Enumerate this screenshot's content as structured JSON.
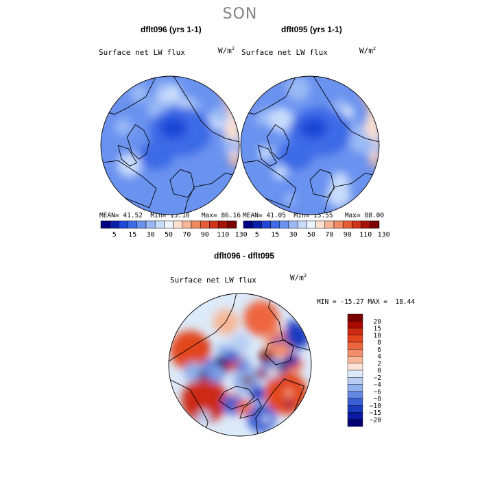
{
  "season": "SON",
  "diff_title": "dflt096 - dflt095",
  "chart_data": [
    {
      "type": "heatmap",
      "projection": "north polar stereographic",
      "title": "dflt096 (yrs 1-1)",
      "variable": "Surface net LW flux",
      "units": "W/m",
      "units_exp": "2",
      "stats": {
        "mean_label": "MEAN=",
        "mean": "41.52",
        "min_label": "Min=",
        "min": "15.10",
        "max_label": "Max=",
        "max": "86.16"
      },
      "levels": [
        5,
        15,
        30,
        50,
        70,
        90,
        110,
        130
      ],
      "colors": [
        "#000080",
        "#0a1fa8",
        "#1f47d6",
        "#3e6ae6",
        "#6a92ef",
        "#9ab9f5",
        "#c9dcfb",
        "#eef4fd",
        "#fde0cf",
        "#f8b597",
        "#f08a63",
        "#e65c37",
        "#cf3318",
        "#a51205",
        "#7a0000"
      ]
    },
    {
      "type": "heatmap",
      "projection": "north polar stereographic",
      "title": "dflt095 (yrs 1-1)",
      "variable": "Surface net LW flux",
      "units": "W/m",
      "units_exp": "2",
      "stats": {
        "mean_label": "MEAN=",
        "mean": "41.05",
        "min_label": "Min=",
        "min": "15.55",
        "max_label": "Max=",
        "max": "88.00"
      },
      "levels": [
        5,
        15,
        30,
        50,
        70,
        90,
        110,
        130
      ],
      "colors": [
        "#000080",
        "#0a1fa8",
        "#1f47d6",
        "#3e6ae6",
        "#6a92ef",
        "#9ab9f5",
        "#c9dcfb",
        "#eef4fd",
        "#fde0cf",
        "#f8b597",
        "#f08a63",
        "#e65c37",
        "#cf3318",
        "#a51205",
        "#7a0000"
      ]
    },
    {
      "type": "heatmap",
      "projection": "north polar stereographic",
      "title": "dflt096 - dflt095",
      "variable": "Surface net LW flux",
      "units": "W/m",
      "units_exp": "2",
      "stats": {
        "min_label": "MIN =",
        "min": "-15.27",
        "max_label": "MAX =",
        "max": "18.44"
      },
      "levels": [
        20,
        15,
        10,
        8,
        6,
        4,
        2,
        0,
        -2,
        -4,
        -6,
        -8,
        -10,
        -15,
        -20
      ],
      "level_labels": [
        "20",
        "15",
        "10",
        "8",
        "6",
        "4",
        "2",
        "0",
        "−2",
        "−4",
        "−6",
        "−8",
        "−10",
        "−15",
        "−20"
      ],
      "colors": [
        "#7a0000",
        "#a80a05",
        "#cc2a12",
        "#e3461f",
        "#ee6640",
        "#f48d6b",
        "#f8b797",
        "#fde4d8",
        "#ddeaf9",
        "#b8cff3",
        "#8fb0ea",
        "#6487df",
        "#3a5ed3",
        "#1a3bc0",
        "#0a1aa0",
        "#000070"
      ]
    }
  ]
}
